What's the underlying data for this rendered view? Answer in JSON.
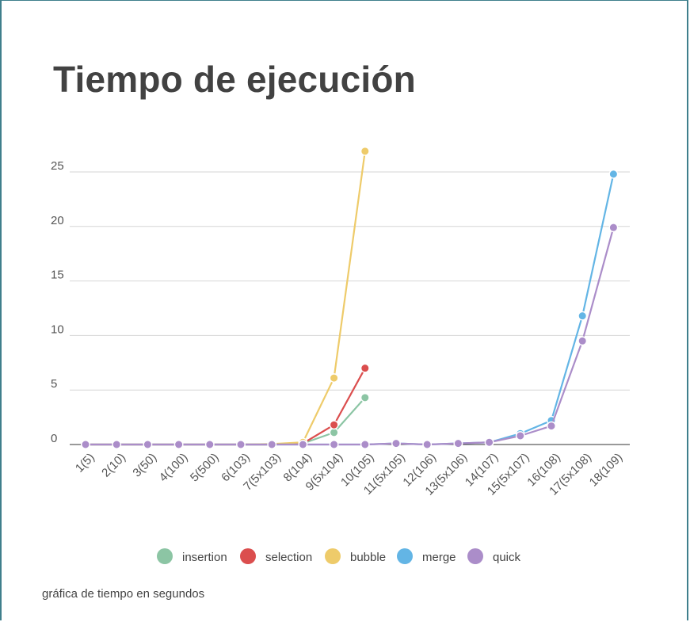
{
  "title": "Tiempo de ejecución",
  "caption": "gráfica de tiempo en segundos",
  "chart_data": {
    "type": "line",
    "title": "Tiempo de ejecución",
    "xlabel": "",
    "ylabel": "",
    "ylim": [
      0,
      25
    ],
    "yticks": [
      0,
      5,
      10,
      15,
      20,
      25
    ],
    "grid": true,
    "legend_position": "bottom",
    "categories": [
      "1(5)",
      "2(10)",
      "3(50)",
      "4(100)",
      "5(500)",
      "6(103)",
      "7(5x103)",
      "8(104)",
      "9(5x104)",
      "10(105)",
      "11(5x105)",
      "12(106)",
      "13(5x106)",
      "14(107)",
      "15(5x107)",
      "16(108)",
      "17(5x108)",
      "18(109)"
    ],
    "series": [
      {
        "name": "insertion",
        "color": "#8cc5a4",
        "values": [
          0,
          0,
          0,
          0,
          0,
          0,
          0,
          0.1,
          1.1,
          4.3,
          null,
          null,
          null,
          null,
          null,
          null,
          null,
          null
        ]
      },
      {
        "name": "selection",
        "color": "#db4e4e",
        "values": [
          0,
          0,
          0,
          0,
          0,
          0,
          0,
          0.1,
          1.8,
          7.0,
          null,
          null,
          null,
          null,
          null,
          null,
          null,
          null
        ]
      },
      {
        "name": "bubble",
        "color": "#eecb6a",
        "values": [
          0,
          0,
          0,
          0,
          0,
          0,
          0.05,
          0.2,
          6.1,
          26.9,
          null,
          null,
          null,
          null,
          null,
          null,
          null,
          null
        ]
      },
      {
        "name": "merge",
        "color": "#63b5e5",
        "values": [
          0,
          0,
          0,
          0,
          0,
          0,
          0,
          0,
          0,
          0,
          0.1,
          0,
          0.1,
          0.2,
          1.0,
          2.2,
          11.8,
          24.8
        ]
      },
      {
        "name": "quick",
        "color": "#ab8dc9",
        "values": [
          0,
          0,
          0,
          0,
          0,
          0,
          0,
          0,
          0,
          0,
          0.1,
          0,
          0.1,
          0.2,
          0.8,
          1.7,
          9.5,
          19.9
        ]
      }
    ]
  }
}
